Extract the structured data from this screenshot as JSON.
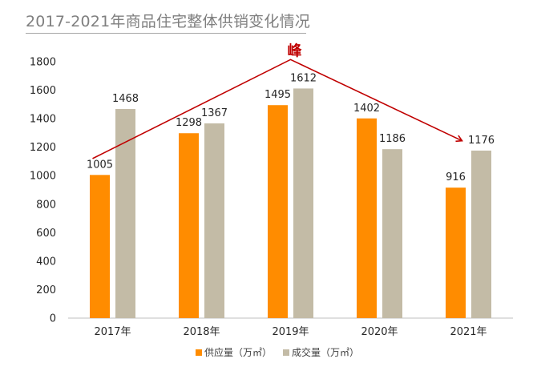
{
  "title": "2017-2021年商品住宅整体供销变化情况",
  "annotation": "峰",
  "colors": {
    "supply": "#ff8c00",
    "deal": "#c3bba6",
    "trend": "#c00000",
    "axis": "#bfbfbf"
  },
  "chart_data": {
    "type": "bar",
    "title": "2017-2021年商品住宅整体供销变化情况",
    "categories": [
      "2017年",
      "2018年",
      "2019年",
      "2020年",
      "2021年"
    ],
    "series": [
      {
        "name": "供应量（万㎡）",
        "values": [
          1005,
          1298,
          1495,
          1402,
          916
        ]
      },
      {
        "name": "成交量（万㎡）",
        "values": [
          1468,
          1367,
          1612,
          1186,
          1176
        ]
      }
    ],
    "ylim": [
      0,
      1800
    ],
    "yticks": [
      0,
      200,
      400,
      600,
      800,
      1000,
      1200,
      1400,
      1600,
      1800
    ],
    "xlabel": "",
    "ylabel": "",
    "legend_position": "bottom",
    "annotations": [
      "峰"
    ]
  }
}
